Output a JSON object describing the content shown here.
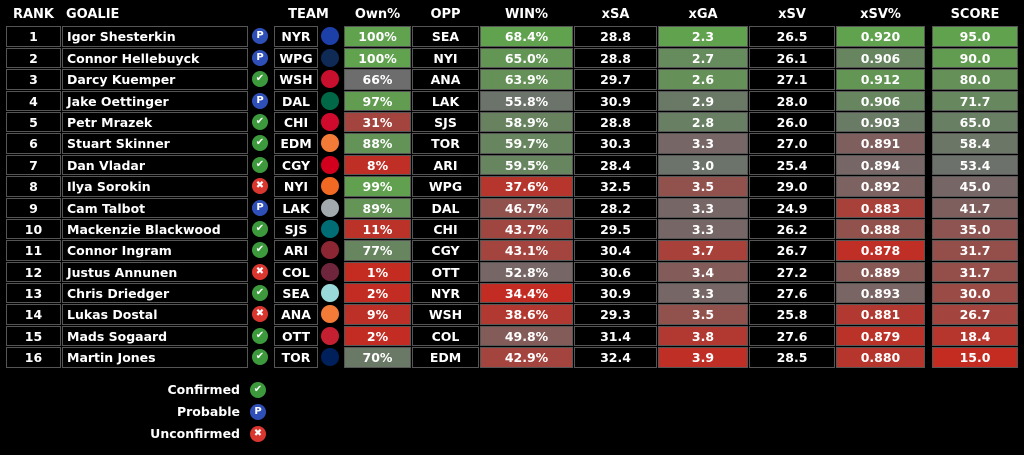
{
  "headers": {
    "rank": "RANK",
    "goalie": "GOALIE",
    "team": "TEAM",
    "own": "Own%",
    "opp": "OPP",
    "win": "WIN%",
    "xsa": "xSA",
    "xga": "xGA",
    "xsv": "xSV",
    "xsvp": "xSV%",
    "score": "SCORE"
  },
  "status_icons": {
    "confirmed": {
      "glyph": "✔",
      "color": "#3c9a3c"
    },
    "probable": {
      "glyph": "P",
      "color": "#2f4fb8"
    },
    "unconfirmed": {
      "glyph": "✖",
      "color": "#d9362f"
    }
  },
  "color_scale": {
    "good": "#5fa84a",
    "neutral": "#6d6d6d",
    "bad": "#c8281e"
  },
  "team_logos": {
    "NYR": "#1d3fa8",
    "WPG": "#0e2a55",
    "WSH": "#c8102e",
    "DAL": "#006847",
    "CHI": "#cf0a2c",
    "EDM": "#f47a38",
    "CGY": "#d2001c",
    "NYI": "#f26924",
    "LAK": "#a2aaad",
    "SJS": "#006d75",
    "ARI": "#8c2633",
    "COL": "#6f263d",
    "SEA": "#99d9d9",
    "ANA": "#f47a38",
    "OTT": "#c52032",
    "TOR": "#00205b"
  },
  "rows": [
    {
      "rank": "1",
      "goalie": "Igor Shesterkin",
      "status": "probable",
      "team": "NYR",
      "own": "100%",
      "own_t": 0.95,
      "opp": "SEA",
      "win": "68.4%",
      "win_t": 0.95,
      "xsa": "28.8",
      "xga": "2.3",
      "xga_t": 0.95,
      "xsv": "26.5",
      "xsvp": "0.920",
      "xsvp_t": 0.95,
      "score": "95.0",
      "score_t": 0.95
    },
    {
      "rank": "2",
      "goalie": "Connor Hellebuyck",
      "status": "probable",
      "team": "WPG",
      "own": "100%",
      "own_t": 0.95,
      "opp": "NYI",
      "win": "65.0%",
      "win_t": 0.85,
      "xsa": "28.8",
      "xga": "2.7",
      "xga_t": 0.75,
      "xsv": "26.1",
      "xsvp": "0.906",
      "xsvp_t": 0.7,
      "score": "90.0",
      "score_t": 0.9
    },
    {
      "rank": "3",
      "goalie": "Darcy Kuemper",
      "status": "confirmed",
      "team": "WSH",
      "own": "66%",
      "own_t": 0.5,
      "opp": "ANA",
      "win": "63.9%",
      "win_t": 0.8,
      "xsa": "29.7",
      "xga": "2.6",
      "xga_t": 0.8,
      "xsv": "27.1",
      "xsvp": "0.912",
      "xsvp_t": 0.85,
      "score": "80.0",
      "score_t": 0.8
    },
    {
      "rank": "4",
      "goalie": "Jake Oettinger",
      "status": "probable",
      "team": "DAL",
      "own": "97%",
      "own_t": 0.9,
      "opp": "LAK",
      "win": "55.8%",
      "win_t": 0.55,
      "xsa": "30.9",
      "xga": "2.9",
      "xga_t": 0.6,
      "xsv": "28.0",
      "xsvp": "0.906",
      "xsvp_t": 0.7,
      "score": "71.7",
      "score_t": 0.72
    },
    {
      "rank": "5",
      "goalie": "Petr Mrazek",
      "status": "confirmed",
      "team": "CHI",
      "own": "31%",
      "own_t": 0.2,
      "opp": "SJS",
      "win": "58.9%",
      "win_t": 0.68,
      "xsa": "28.8",
      "xga": "2.8",
      "xga_t": 0.65,
      "xsv": "26.0",
      "xsvp": "0.903",
      "xsvp_t": 0.62,
      "score": "65.0",
      "score_t": 0.65
    },
    {
      "rank": "6",
      "goalie": "Stuart Skinner",
      "status": "confirmed",
      "team": "EDM",
      "own": "88%",
      "own_t": 0.82,
      "opp": "TOR",
      "win": "59.7%",
      "win_t": 0.7,
      "xsa": "30.3",
      "xga": "3.3",
      "xga_t": 0.45,
      "xsv": "27.0",
      "xsvp": "0.891",
      "xsvp_t": 0.4,
      "score": "58.4",
      "score_t": 0.58
    },
    {
      "rank": "7",
      "goalie": "Dan Vladar",
      "status": "confirmed",
      "team": "CGY",
      "own": "8%",
      "own_t": 0.05,
      "opp": "ARI",
      "win": "59.5%",
      "win_t": 0.7,
      "xsa": "28.4",
      "xga": "3.0",
      "xga_t": 0.55,
      "xsv": "25.4",
      "xsvp": "0.894",
      "xsvp_t": 0.45,
      "score": "53.4",
      "score_t": 0.53
    },
    {
      "rank": "8",
      "goalie": "Ilya Sorokin",
      "status": "unconfirmed",
      "team": "NYI",
      "own": "99%",
      "own_t": 0.93,
      "opp": "WPG",
      "win": "37.6%",
      "win_t": 0.1,
      "xsa": "32.5",
      "xga": "3.5",
      "xga_t": 0.3,
      "xsv": "29.0",
      "xsvp": "0.892",
      "xsvp_t": 0.42,
      "score": "45.0",
      "score_t": 0.45
    },
    {
      "rank": "9",
      "goalie": "Cam Talbot",
      "status": "probable",
      "team": "LAK",
      "own": "89%",
      "own_t": 0.83,
      "opp": "DAL",
      "win": "46.7%",
      "win_t": 0.3,
      "xsa": "28.2",
      "xga": "3.3",
      "xga_t": 0.45,
      "xsv": "24.9",
      "xsvp": "0.883",
      "xsvp_t": 0.18,
      "score": "41.7",
      "score_t": 0.4
    },
    {
      "rank": "10",
      "goalie": "Mackenzie Blackwood",
      "status": "confirmed",
      "team": "SJS",
      "own": "11%",
      "own_t": 0.07,
      "opp": "CHI",
      "win": "43.7%",
      "win_t": 0.22,
      "xsa": "29.5",
      "xga": "3.3",
      "xga_t": 0.45,
      "xsv": "26.2",
      "xsvp": "0.888",
      "xsvp_t": 0.3,
      "score": "35.0",
      "score_t": 0.32
    },
    {
      "rank": "11",
      "goalie": "Connor Ingram",
      "status": "confirmed",
      "team": "ARI",
      "own": "77%",
      "own_t": 0.7,
      "opp": "CGY",
      "win": "43.1%",
      "win_t": 0.2,
      "xsa": "30.4",
      "xga": "3.7",
      "xga_t": 0.18,
      "xsv": "26.7",
      "xsvp": "0.878",
      "xsvp_t": 0.05,
      "score": "31.7",
      "score_t": 0.28
    },
    {
      "rank": "12",
      "goalie": "Justus Annunen",
      "status": "unconfirmed",
      "team": "COL",
      "own": "1%",
      "own_t": 0.02,
      "opp": "OTT",
      "win": "52.8%",
      "win_t": 0.45,
      "xsa": "30.6",
      "xga": "3.4",
      "xga_t": 0.38,
      "xsv": "27.2",
      "xsvp": "0.889",
      "xsvp_t": 0.35,
      "score": "31.7",
      "score_t": 0.28
    },
    {
      "rank": "13",
      "goalie": "Chris Driedger",
      "status": "confirmed",
      "team": "SEA",
      "own": "2%",
      "own_t": 0.03,
      "opp": "NYR",
      "win": "34.4%",
      "win_t": 0.03,
      "xsa": "30.9",
      "xga": "3.3",
      "xga_t": 0.45,
      "xsv": "27.6",
      "xsvp": "0.893",
      "xsvp_t": 0.44,
      "score": "30.0",
      "score_t": 0.25
    },
    {
      "rank": "14",
      "goalie": "Lukas Dostal",
      "status": "unconfirmed",
      "team": "ANA",
      "own": "9%",
      "own_t": 0.06,
      "opp": "WSH",
      "win": "38.6%",
      "win_t": 0.12,
      "xsa": "29.3",
      "xga": "3.5",
      "xga_t": 0.3,
      "xsv": "25.8",
      "xsvp": "0.881",
      "xsvp_t": 0.12,
      "score": "26.7",
      "score_t": 0.2
    },
    {
      "rank": "15",
      "goalie": "Mads Sogaard",
      "status": "confirmed",
      "team": "OTT",
      "own": "2%",
      "own_t": 0.03,
      "opp": "COL",
      "win": "49.8%",
      "win_t": 0.38,
      "xsa": "31.4",
      "xga": "3.8",
      "xga_t": 0.12,
      "xsv": "27.6",
      "xsvp": "0.879",
      "xsvp_t": 0.07,
      "score": "18.4",
      "score_t": 0.1
    },
    {
      "rank": "16",
      "goalie": "Martin Jones",
      "status": "confirmed",
      "team": "TOR",
      "own": "70%",
      "own_t": 0.6,
      "opp": "EDM",
      "win": "42.9%",
      "win_t": 0.2,
      "xsa": "32.4",
      "xga": "3.9",
      "xga_t": 0.05,
      "xsv": "28.5",
      "xsvp": "0.880",
      "xsvp_t": 0.1,
      "score": "15.0",
      "score_t": 0.02
    }
  ],
  "legend": [
    {
      "label": "Confirmed",
      "status": "confirmed"
    },
    {
      "label": "Probable",
      "status": "probable"
    },
    {
      "label": "Unconfirmed",
      "status": "unconfirmed"
    }
  ]
}
